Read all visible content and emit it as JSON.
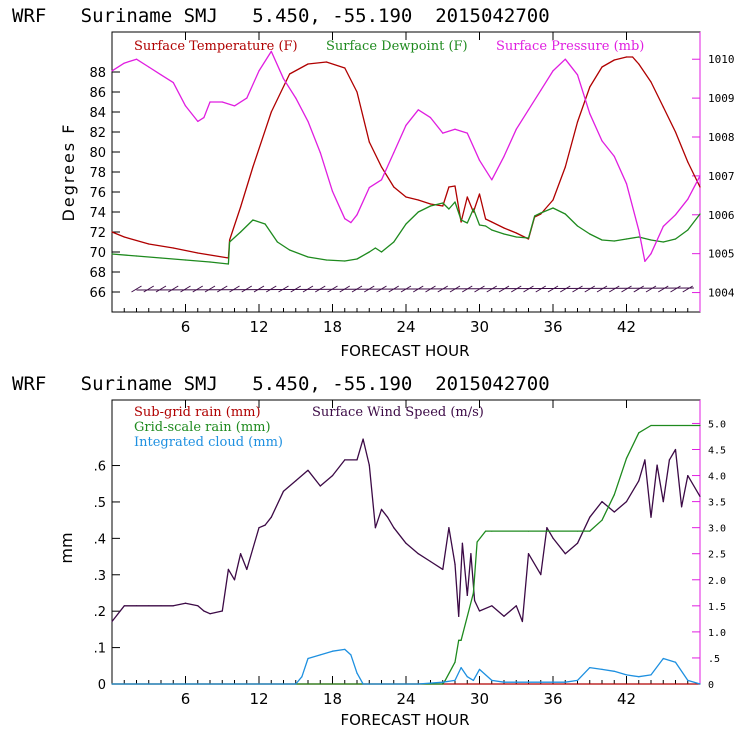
{
  "colors": {
    "temperature": "#b00000",
    "dewpoint": "#1e8a1e",
    "pressure": "#e01ee0",
    "subgrid_rain": "#b00000",
    "wind_speed": "#3c0a46",
    "grid_rain": "#1e8a1e",
    "cloud": "#1e90e0",
    "axis": "#000000"
  },
  "chart_data": [
    {
      "type": "line",
      "title": "WRF   Suriname SMJ   5.450, -55.190  2015042700",
      "xlabel": "FORECAST HOUR",
      "ylabel": "Degrees F",
      "y2label": "",
      "xlim": [
        0,
        48
      ],
      "ylim": [
        64,
        92
      ],
      "y2lim": [
        1003.5,
        1010.7
      ],
      "x_ticks": [
        "6",
        "12",
        "18",
        "24",
        "30",
        "36",
        "42"
      ],
      "x_tick_values": [
        6,
        12,
        18,
        24,
        30,
        36,
        42
      ],
      "y_ticks": [
        "66",
        "68",
        "70",
        "72",
        "74",
        "76",
        "78",
        "80",
        "82",
        "84",
        "86",
        "88"
      ],
      "y_tick_values": [
        66,
        68,
        70,
        72,
        74,
        76,
        78,
        80,
        82,
        84,
        86,
        88
      ],
      "y2_ticks": [
        "1004",
        "1005",
        "1006",
        "1007",
        "1008",
        "1009",
        "1010"
      ],
      "y2_tick_values": [
        1004,
        1005,
        1006,
        1007,
        1008,
        1009,
        1010
      ],
      "legend": [
        "Surface Temperature (F)",
        "Surface Dewpoint (F)",
        "Surface Pressure (mb)"
      ],
      "series": [
        {
          "name": "Surface Temperature (F)",
          "axis": "left",
          "x": [
            0,
            1,
            3,
            5,
            7,
            9.5,
            9.6,
            10.5,
            11.5,
            13,
            14.5,
            16,
            17.5,
            19,
            20,
            21,
            22,
            23,
            24,
            25,
            26,
            27,
            27.5,
            28,
            28.5,
            29,
            29.5,
            30,
            30.5,
            31,
            32,
            33,
            34,
            34.5,
            35,
            36,
            37,
            38,
            39,
            40,
            41,
            42,
            42.5,
            43,
            44,
            45,
            46,
            47,
            48
          ],
          "values": [
            72.0,
            71.5,
            70.8,
            70.4,
            69.9,
            69.4,
            71.2,
            74.5,
            78.5,
            84.0,
            87.8,
            88.8,
            89.0,
            88.4,
            86.0,
            81.0,
            78.5,
            76.5,
            75.5,
            75.2,
            74.8,
            74.6,
            76.5,
            76.6,
            73.0,
            75.5,
            74.0,
            75.8,
            73.3,
            73.0,
            72.4,
            71.9,
            71.3,
            73.5,
            73.8,
            75.2,
            78.5,
            83.0,
            86.5,
            88.5,
            89.2,
            89.5,
            89.5,
            88.8,
            87.0,
            84.5,
            82.0,
            79.0,
            76.5
          ]
        },
        {
          "name": "Surface Dewpoint (F)",
          "axis": "left",
          "x": [
            0,
            2,
            4,
            6,
            8,
            9.5,
            9.6,
            10.5,
            11.5,
            12.5,
            13.5,
            14.5,
            16,
            17.5,
            19,
            20,
            21,
            21.5,
            22,
            23,
            24,
            25,
            26,
            27,
            27.5,
            28,
            28.5,
            29,
            29.5,
            30,
            30.5,
            31,
            32,
            33,
            34,
            34.5,
            35,
            36,
            37,
            38,
            39,
            40,
            41,
            42,
            43,
            44,
            45,
            46,
            47,
            48
          ],
          "values": [
            69.8,
            69.6,
            69.4,
            69.2,
            69.0,
            68.8,
            71.0,
            72.0,
            73.2,
            72.8,
            71.0,
            70.2,
            69.5,
            69.2,
            69.1,
            69.3,
            70.0,
            70.4,
            70.0,
            71.0,
            72.8,
            74.0,
            74.6,
            74.9,
            74.3,
            75.0,
            73.2,
            72.9,
            74.3,
            72.7,
            72.6,
            72.2,
            71.8,
            71.5,
            71.4,
            73.6,
            73.9,
            74.4,
            73.8,
            72.6,
            71.8,
            71.2,
            71.1,
            71.3,
            71.5,
            71.2,
            71.0,
            71.3,
            72.2,
            73.8
          ]
        },
        {
          "name": "Surface Pressure (mb)",
          "axis": "right",
          "x": [
            0,
            1,
            2,
            3,
            4,
            5,
            6,
            7,
            7.5,
            8,
            9,
            10,
            11,
            12,
            13,
            14,
            15,
            16,
            17,
            18,
            19,
            19.5,
            20,
            21,
            22,
            23,
            24,
            25,
            26,
            27,
            28,
            29,
            30,
            31,
            32,
            33,
            34,
            35,
            36,
            37,
            38,
            39,
            40,
            41,
            42,
            43,
            43.5,
            44,
            45,
            46,
            47,
            48
          ],
          "values": [
            1009.7,
            1009.9,
            1010.0,
            1009.8,
            1009.6,
            1009.4,
            1008.8,
            1008.4,
            1008.5,
            1008.9,
            1008.9,
            1008.8,
            1009.0,
            1009.7,
            1010.2,
            1009.5,
            1009.0,
            1008.4,
            1007.6,
            1006.6,
            1005.9,
            1005.8,
            1006.0,
            1006.7,
            1006.9,
            1007.6,
            1008.3,
            1008.7,
            1008.5,
            1008.1,
            1008.2,
            1008.1,
            1007.4,
            1006.9,
            1007.5,
            1008.2,
            1008.7,
            1009.2,
            1009.7,
            1010.0,
            1009.6,
            1008.6,
            1007.9,
            1007.5,
            1006.8,
            1005.6,
            1004.8,
            1005.0,
            1005.7,
            1006.0,
            1006.4,
            1007.0
          ]
        }
      ]
    },
    {
      "type": "line",
      "title": "WRF   Suriname SMJ   5.450, -55.190  2015042700",
      "xlabel": "FORECAST HOUR",
      "ylabel": "mm",
      "y2label": "",
      "xlim": [
        0,
        48
      ],
      "ylim": [
        0,
        0.78
      ],
      "y2lim": [
        0,
        5.45
      ],
      "x_ticks": [
        "6",
        "12",
        "18",
        "24",
        "30",
        "36",
        "42"
      ],
      "x_tick_values": [
        6,
        12,
        18,
        24,
        30,
        36,
        42
      ],
      "y_ticks": [
        "0",
        ".1",
        ".2",
        ".3",
        ".4",
        ".5",
        ".6"
      ],
      "y_tick_values": [
        0,
        0.1,
        0.2,
        0.3,
        0.4,
        0.5,
        0.6
      ],
      "y2_ticks": [
        "0",
        ".5",
        "1.0",
        "1.5",
        "2.0",
        "2.5",
        "3.0",
        "3.5",
        "4.0",
        "4.5",
        "5.0"
      ],
      "y2_tick_values": [
        0,
        0.5,
        1.0,
        1.5,
        2.0,
        2.5,
        3.0,
        3.5,
        4.0,
        4.5,
        5.0
      ],
      "legend": [
        "Sub-grid rain (mm)",
        "Surface Wind Speed (m/s)",
        "Grid-scale rain (mm)",
        "Integrated cloud (mm)"
      ],
      "series": [
        {
          "name": "Sub-grid rain (mm)",
          "axis": "left",
          "x": [
            0,
            48
          ],
          "values": [
            0,
            0
          ]
        },
        {
          "name": "Surface Wind Speed (m/s)",
          "axis": "right",
          "x": [
            0,
            1,
            2,
            3,
            4,
            5,
            6,
            7,
            7.5,
            8,
            9,
            9.5,
            10,
            10.5,
            11,
            11.5,
            12,
            12.5,
            13,
            14,
            15,
            16,
            17,
            18,
            19,
            20,
            20.5,
            21,
            21.5,
            22,
            22.5,
            23,
            24,
            25,
            26,
            27,
            27.5,
            28,
            28.3,
            28.6,
            29,
            29.3,
            29.6,
            30,
            31,
            32,
            33,
            33.5,
            34,
            35,
            35.5,
            36,
            37,
            38,
            39,
            40,
            41,
            42,
            43,
            43.5,
            44,
            44.5,
            45,
            45.5,
            46,
            46.5,
            47,
            48
          ],
          "values": [
            1.2,
            1.5,
            1.5,
            1.5,
            1.5,
            1.5,
            1.55,
            1.5,
            1.4,
            1.35,
            1.4,
            2.2,
            2.0,
            2.5,
            2.2,
            2.6,
            3.0,
            3.05,
            3.2,
            3.7,
            3.9,
            4.1,
            3.8,
            4.0,
            4.3,
            4.3,
            4.7,
            4.2,
            3.0,
            3.35,
            3.2,
            3.0,
            2.7,
            2.5,
            2.35,
            2.2,
            3.0,
            2.3,
            1.3,
            2.7,
            1.7,
            2.5,
            1.6,
            1.4,
            1.5,
            1.3,
            1.5,
            1.2,
            2.5,
            2.1,
            3.0,
            2.8,
            2.5,
            2.7,
            3.2,
            3.5,
            3.3,
            3.5,
            3.9,
            4.3,
            3.2,
            4.2,
            3.5,
            4.3,
            4.5,
            3.4,
            4.0,
            3.6
          ]
        },
        {
          "name": "Grid-scale rain (mm)",
          "axis": "left",
          "x": [
            0,
            27,
            27.2,
            28,
            28.3,
            28.5,
            29.5,
            29.8,
            30.5,
            31,
            34,
            36,
            38,
            39,
            40,
            41,
            42,
            43,
            44,
            48
          ],
          "values": [
            0,
            0,
            0.01,
            0.06,
            0.12,
            0.12,
            0.25,
            0.39,
            0.42,
            0.42,
            0.42,
            0.42,
            0.42,
            0.42,
            0.45,
            0.52,
            0.62,
            0.69,
            0.71,
            0.71
          ]
        },
        {
          "name": "Integrated cloud (mm)",
          "axis": "left",
          "x": [
            0,
            15,
            15.5,
            16,
            17,
            18,
            19,
            19.5,
            20,
            20.5,
            25,
            27,
            28,
            28.5,
            29,
            29.5,
            30,
            31,
            32,
            34,
            37,
            38,
            39,
            40,
            41,
            42,
            43,
            44,
            45,
            46,
            47,
            48
          ],
          "values": [
            0,
            0,
            0.02,
            0.07,
            0.08,
            0.09,
            0.095,
            0.08,
            0.03,
            0,
            0,
            0.005,
            0.01,
            0.045,
            0.02,
            0.01,
            0.04,
            0.01,
            0.005,
            0.005,
            0.005,
            0.01,
            0.045,
            0.04,
            0.035,
            0.025,
            0.02,
            0.025,
            0.07,
            0.06,
            0.01,
            0
          ]
        }
      ]
    }
  ]
}
